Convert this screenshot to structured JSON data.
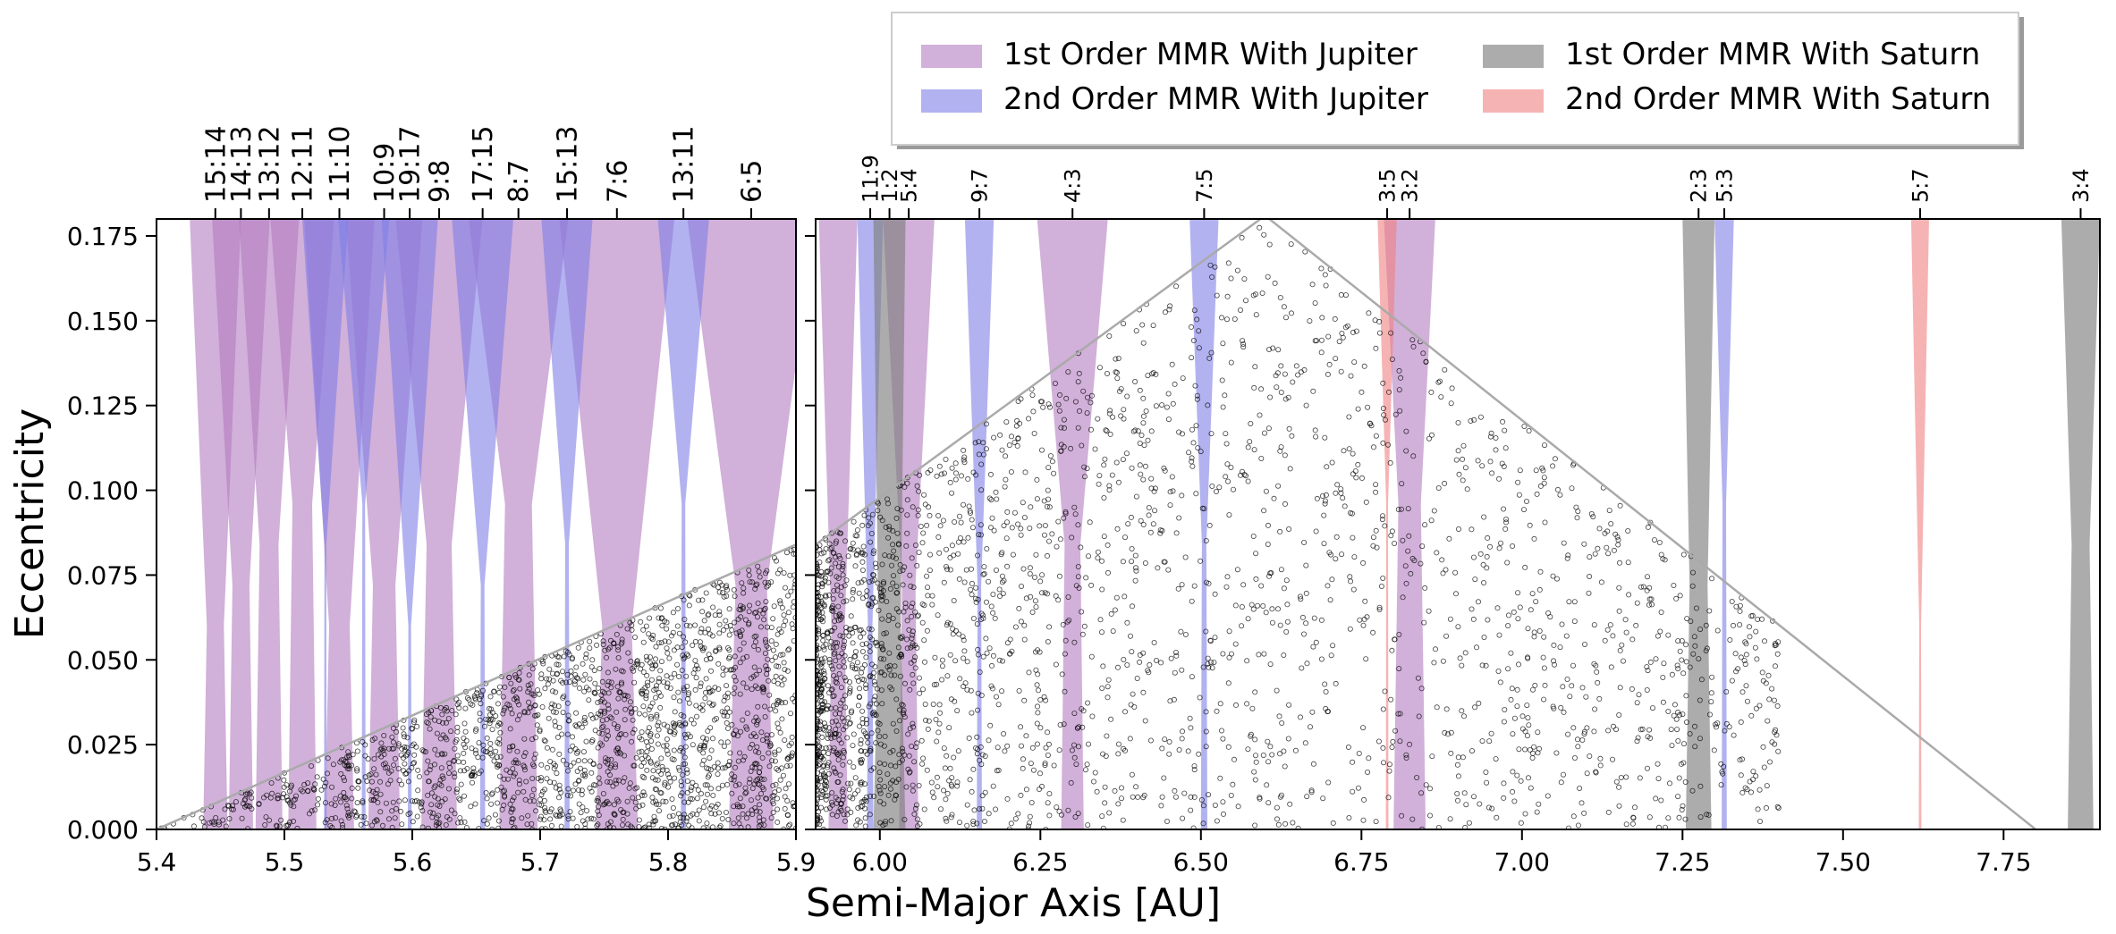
{
  "chart_data": {
    "type": "area",
    "xlabel": "Semi-Major Axis [AU]",
    "ylabel": "Eccentricity",
    "ylim": [
      0,
      0.18
    ],
    "yticks": [
      0.0,
      0.025,
      0.05,
      0.075,
      0.1,
      0.125,
      0.15,
      0.175
    ],
    "panels": [
      {
        "name": "left",
        "xlim": [
          5.4,
          5.9
        ],
        "xticks": [
          5.4,
          5.5,
          5.6,
          5.7,
          5.8,
          5.9
        ],
        "resonance_labels": [
          {
            "label": "15:14",
            "a": 5.446
          },
          {
            "label": "14:13",
            "a": 5.466
          },
          {
            "label": "13:12",
            "a": 5.488
          },
          {
            "label": "12:11",
            "a": 5.514
          },
          {
            "label": "11:10",
            "a": 5.543
          },
          {
            "label": "10:9",
            "a": 5.578
          },
          {
            "label": "19:17",
            "a": 5.598
          },
          {
            "label": "9:8",
            "a": 5.621
          },
          {
            "label": "17:15",
            "a": 5.655
          },
          {
            "label": "8:7",
            "a": 5.683
          },
          {
            "label": "15:13",
            "a": 5.721
          },
          {
            "label": "7:6",
            "a": 5.76
          },
          {
            "label": "13:11",
            "a": 5.812
          },
          {
            "label": "6:5",
            "a": 5.865
          }
        ],
        "regions": [
          {
            "type": "j1",
            "center": 5.446,
            "w0": 0.019,
            "w1": 0.04
          },
          {
            "type": "j1",
            "center": 5.466,
            "w0": 0.019,
            "w1": 0.045
          },
          {
            "type": "j1",
            "center": 5.488,
            "w0": 0.021,
            "w1": 0.047
          },
          {
            "type": "j1",
            "center": 5.514,
            "w0": 0.022,
            "w1": 0.05
          },
          {
            "type": "j1",
            "center": 5.543,
            "w0": 0.023,
            "w1": 0.055
          },
          {
            "type": "j1",
            "center": 5.578,
            "w0": 0.025,
            "w1": 0.06
          },
          {
            "type": "j1",
            "center": 5.621,
            "w0": 0.028,
            "w1": 0.068
          },
          {
            "type": "j1",
            "center": 5.683,
            "w0": 0.03,
            "w1": 0.078
          },
          {
            "type": "j1",
            "center": 5.76,
            "w0": 0.033,
            "w1": 0.09
          },
          {
            "type": "j1",
            "center": 5.865,
            "w0": 0.035,
            "w1": 0.1
          },
          {
            "type": "j2",
            "center": 5.532,
            "w0": 0.002,
            "w1": 0.036
          },
          {
            "type": "j2",
            "center": 5.562,
            "w0": 0.003,
            "w1": 0.04
          },
          {
            "type": "j2",
            "center": 5.598,
            "w0": 0.003,
            "w1": 0.044
          },
          {
            "type": "j2",
            "center": 5.655,
            "w0": 0.004,
            "w1": 0.048
          },
          {
            "type": "j2",
            "center": 5.721,
            "w0": 0.004,
            "w1": 0.04
          },
          {
            "type": "j2",
            "center": 5.812,
            "w0": 0.004,
            "w1": 0.04
          }
        ],
        "orbit_line": [
          [
            5.4,
            0.0
          ],
          [
            5.9,
            0.084
          ]
        ]
      },
      {
        "name": "right",
        "xlim": [
          5.9,
          7.9
        ],
        "xticks": [
          6.0,
          6.25,
          6.5,
          6.75,
          7.0,
          7.25,
          7.5,
          7.75
        ],
        "resonance_labels": [
          {
            "label": "11:9",
            "a": 5.985
          },
          {
            "label": "1:2",
            "a": 6.015
          },
          {
            "label": "5:4",
            "a": 6.045
          },
          {
            "label": "9:7",
            "a": 6.155
          },
          {
            "label": "4:3",
            "a": 6.3
          },
          {
            "label": "7:5",
            "a": 6.505
          },
          {
            "label": "3:5",
            "a": 6.79
          },
          {
            "label": "3:2",
            "a": 6.825
          },
          {
            "label": "2:3",
            "a": 7.275
          },
          {
            "label": "5:3",
            "a": 7.315
          },
          {
            "label": "5:7",
            "a": 7.62
          },
          {
            "label": "3:4",
            "a": 7.87
          }
        ],
        "regions": [
          {
            "type": "j1",
            "center": 5.935,
            "w0": 0.03,
            "w1": 0.06
          },
          {
            "type": "j1",
            "center": 6.045,
            "w0": 0.03,
            "w1": 0.08
          },
          {
            "type": "j1",
            "center": 6.3,
            "w0": 0.035,
            "w1": 0.11
          },
          {
            "type": "j1",
            "center": 6.825,
            "w0": 0.05,
            "w1": 0.08
          },
          {
            "type": "j2",
            "center": 5.985,
            "w0": 0.01,
            "w1": 0.04
          },
          {
            "type": "j2",
            "center": 6.155,
            "w0": 0.008,
            "w1": 0.045
          },
          {
            "type": "j2",
            "center": 6.505,
            "w0": 0.01,
            "w1": 0.045
          },
          {
            "type": "j2",
            "center": 7.315,
            "w0": 0.008,
            "w1": 0.03
          },
          {
            "type": "s1",
            "center": 6.015,
            "w0": 0.05,
            "w1": 0.05
          },
          {
            "type": "s1",
            "center": 7.275,
            "w0": 0.04,
            "w1": 0.05
          },
          {
            "type": "s1",
            "center": 7.87,
            "w0": 0.04,
            "w1": 0.06
          },
          {
            "type": "s2",
            "center": 6.79,
            "w0": 0.004,
            "w1": 0.03
          },
          {
            "type": "s2",
            "center": 7.62,
            "w0": 0.004,
            "w1": 0.028
          }
        ],
        "orbit_line": [
          [
            5.9,
            0.084
          ],
          [
            6.6,
            0.181
          ],
          [
            7.8,
            0.0
          ]
        ]
      }
    ],
    "legend": {
      "placement": "top-right",
      "entries": [
        {
          "key": "j1",
          "label": "1st Order MMR With Jupiter",
          "color": "#b27bc0"
        },
        {
          "key": "s1",
          "label": "1st Order MMR With Saturn",
          "color": "#7f7f7f"
        },
        {
          "key": "j2",
          "label": "2nd Order MMR With Jupiter",
          "color": "#7e7ee6"
        },
        {
          "key": "s2",
          "label": "2nd Order MMR With Saturn",
          "color": "#f08080"
        }
      ]
    },
    "colors": {
      "j1": "#b27bc0",
      "j2": "#7e7ee6",
      "s1": "#7f7f7f",
      "s2": "#f08080",
      "particles": "#000000",
      "orbit_line": "#aaaaaa"
    },
    "scatter": "synthetic asteroid-like particles, ring markers, black, filling region below orbit line"
  }
}
